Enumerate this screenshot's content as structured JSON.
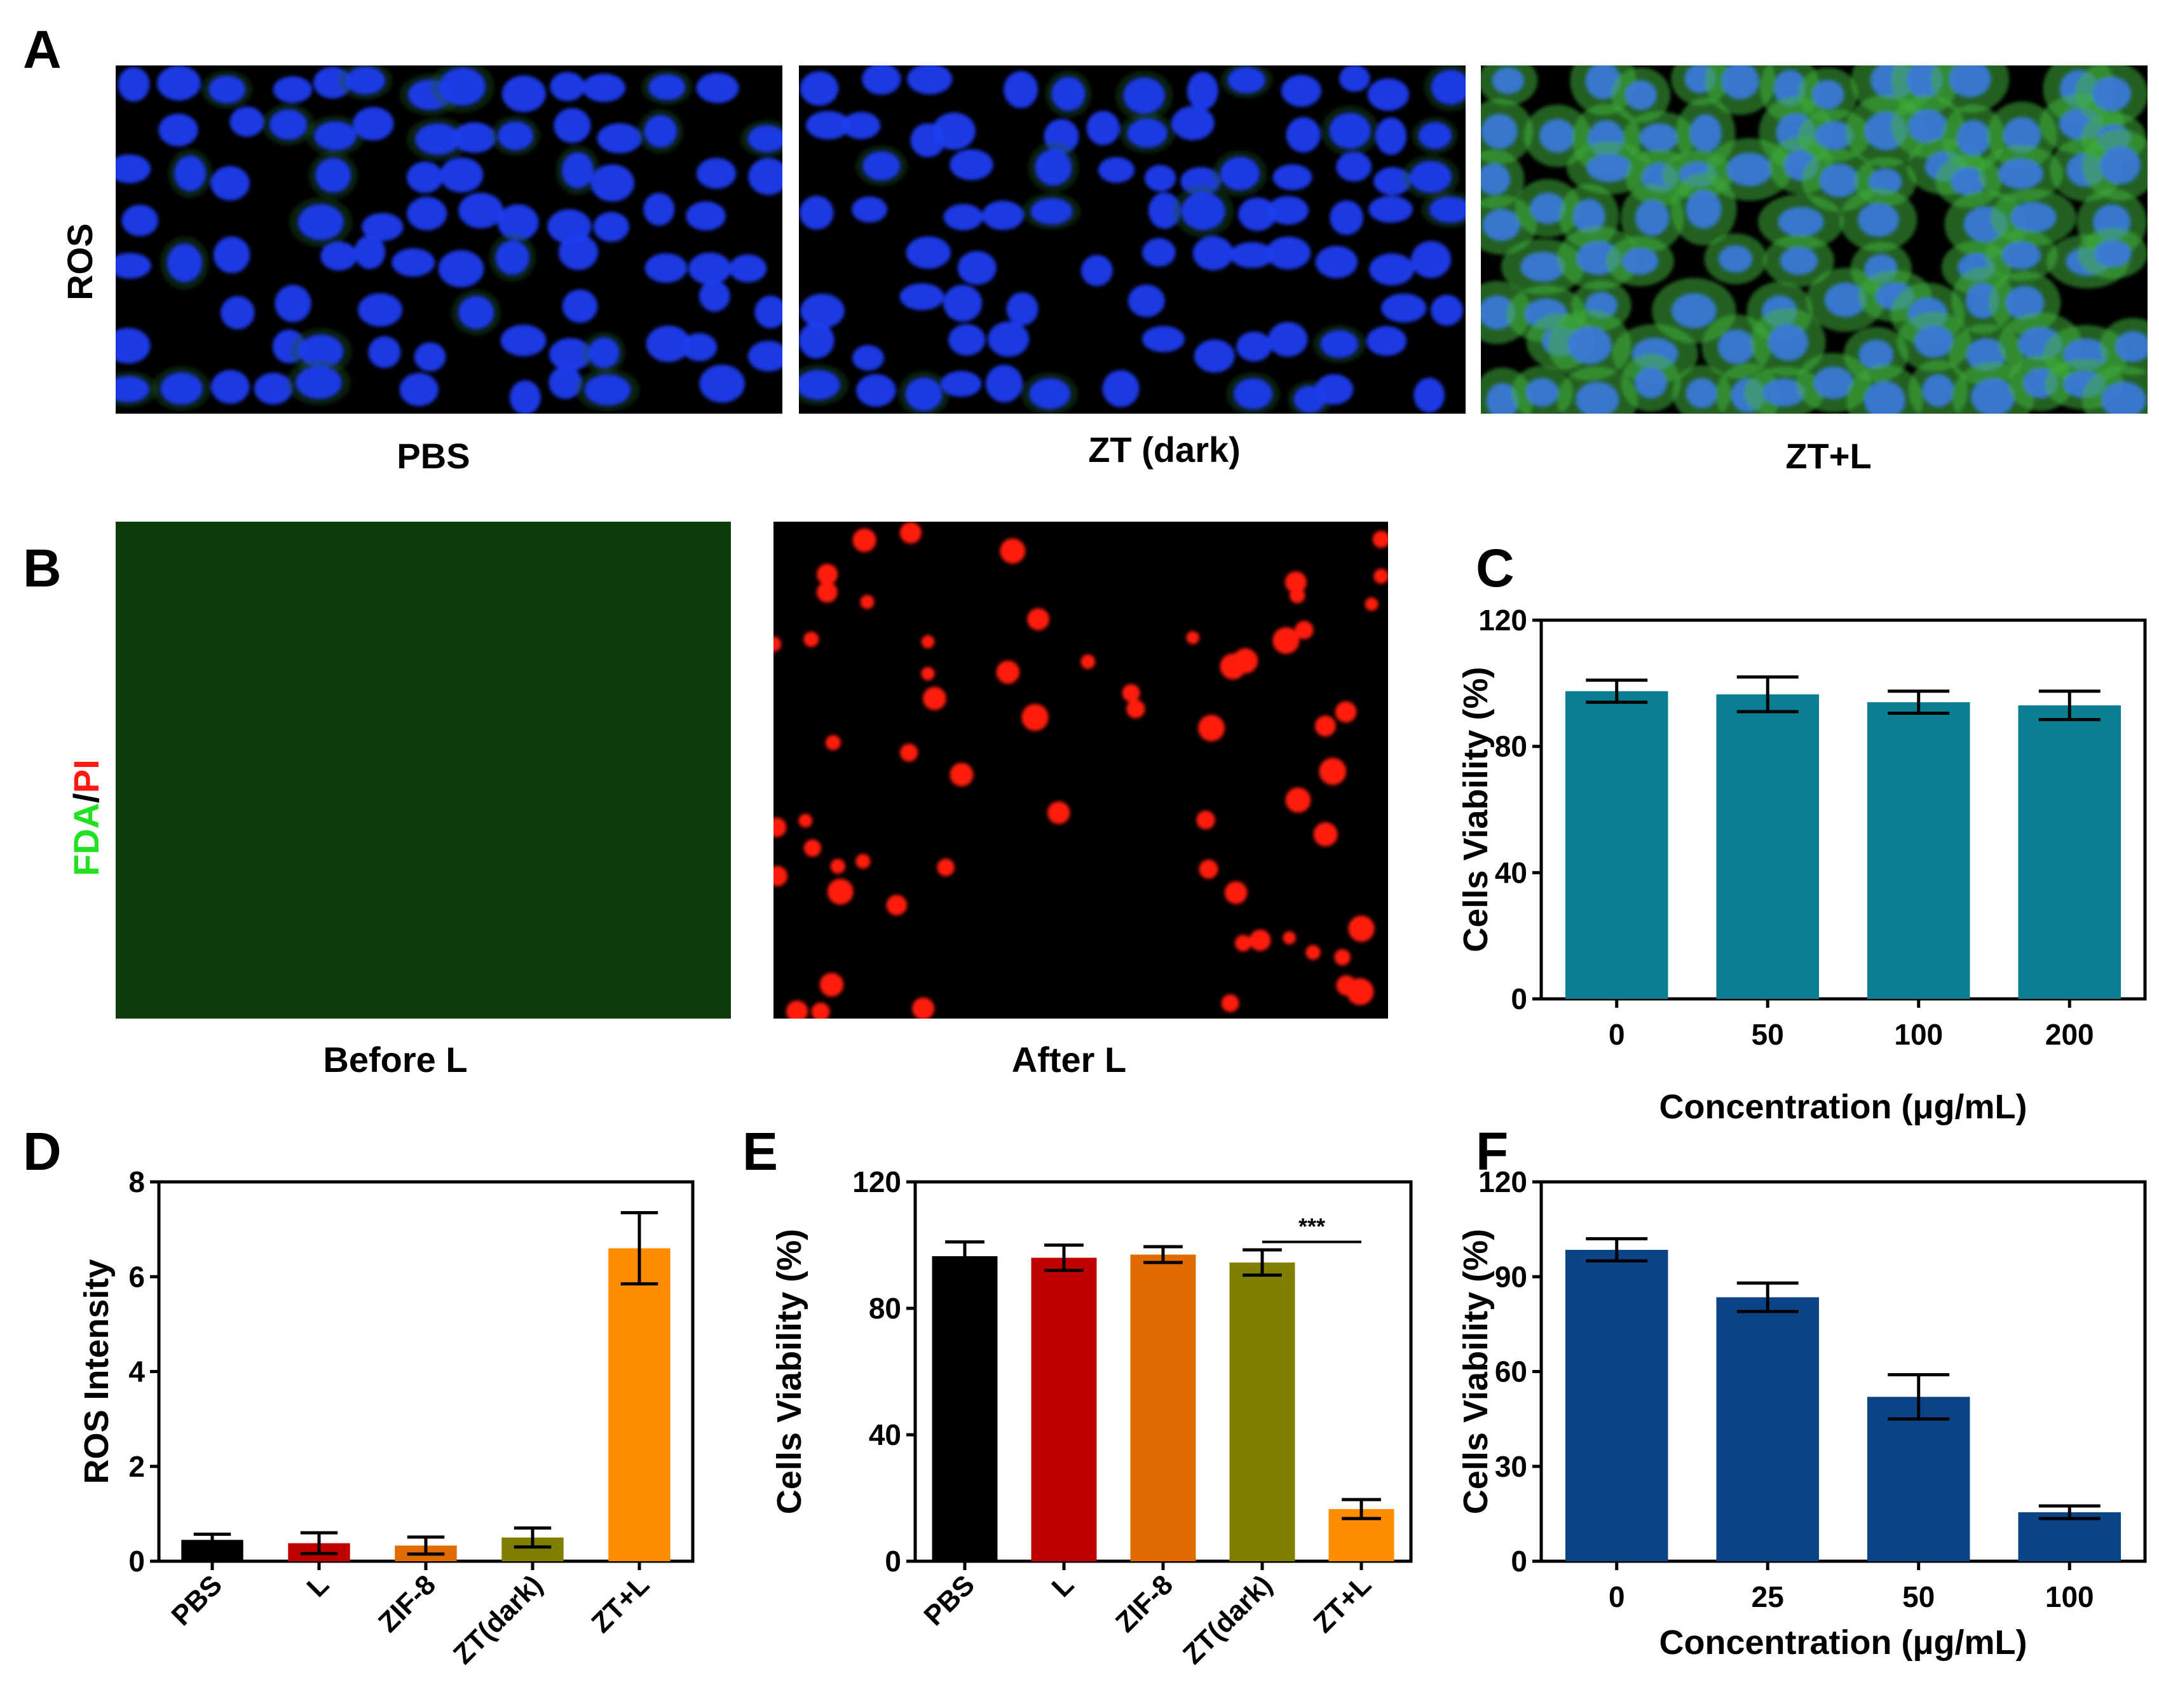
{
  "panels": {
    "A": {
      "label": "A",
      "row_label": "ROS",
      "captions": [
        "PBS",
        "ZT (dark)",
        "ZT+L"
      ]
    },
    "B": {
      "label": "B",
      "stain_fda": "FDA",
      "stain_sep": "/",
      "stain_pi": "PI",
      "captions": [
        "Before L",
        "After L"
      ]
    },
    "C": {
      "label": "C"
    },
    "D": {
      "label": "D"
    },
    "E": {
      "label": "E"
    },
    "F": {
      "label": "F"
    }
  },
  "colors": {
    "nuclei_blue": "#1f3cf0",
    "ros_green": "#3fae3a",
    "fda_green": "#3fd23a",
    "pi_red": "#ff1a10",
    "teal": "#0a7f93",
    "navy": "#0d4387",
    "black": "#000000",
    "red": "#c00000",
    "dark_orange": "#e06b00",
    "olive": "#7f7f00",
    "orange": "#ff8c00"
  },
  "chart_data": [
    {
      "id": "C",
      "type": "bar",
      "categories": [
        "0",
        "50",
        "100",
        "200"
      ],
      "values": [
        97.5,
        96.5,
        94,
        93
      ],
      "errors": [
        3.5,
        5.5,
        3.5,
        4.5
      ],
      "colors": [
        "#0a7f93",
        "#0a7f93",
        "#0a7f93",
        "#0a7f93"
      ],
      "xlabel": "Concentration (μg/mL)",
      "ylabel": "Cells Viability (%)",
      "ylim": [
        0,
        120
      ],
      "yticks": [
        0,
        40,
        80,
        120
      ],
      "rotate_x": false
    },
    {
      "id": "D",
      "type": "bar",
      "categories": [
        "PBS",
        "L",
        "ZIF-8",
        "ZT(dark)",
        "ZT+L"
      ],
      "values": [
        0.45,
        0.38,
        0.33,
        0.5,
        6.6
      ],
      "errors": [
        0.12,
        0.22,
        0.18,
        0.2,
        0.75
      ],
      "colors": [
        "#000000",
        "#c00000",
        "#e06b00",
        "#7f7f00",
        "#ff8c00"
      ],
      "xlabel": "",
      "ylabel": "ROS Intensity",
      "ylim": [
        0,
        8
      ],
      "yticks": [
        0,
        2,
        4,
        6,
        8
      ],
      "rotate_x": true
    },
    {
      "id": "E",
      "type": "bar",
      "categories": [
        "PBS",
        "L",
        "ZIF-8",
        "ZT(dark)",
        "ZT+L"
      ],
      "values": [
        96.5,
        96,
        97,
        94.5,
        16.5
      ],
      "errors": [
        4.5,
        4,
        2.5,
        4,
        3
      ],
      "colors": [
        "#000000",
        "#c00000",
        "#e06b00",
        "#7f7f00",
        "#ff8c00"
      ],
      "xlabel": "",
      "ylabel": "Cells Viability (%)",
      "ylim": [
        0,
        120
      ],
      "yticks": [
        0,
        40,
        80,
        120
      ],
      "rotate_x": true,
      "annotation": {
        "text": "***",
        "from": 3,
        "to": 4,
        "y": 101
      }
    },
    {
      "id": "F",
      "type": "bar",
      "categories": [
        "0",
        "25",
        "50",
        "100"
      ],
      "values": [
        98.5,
        83.5,
        52,
        15.5
      ],
      "errors": [
        3.5,
        4.5,
        7,
        2
      ],
      "colors": [
        "#0d4387",
        "#0d4387",
        "#0d4387",
        "#0d4387"
      ],
      "xlabel": "Concentration (μg/mL)",
      "ylabel": "Cells Viability (%)",
      "ylim": [
        0,
        120
      ],
      "yticks": [
        0,
        30,
        60,
        90,
        120
      ],
      "rotate_x": false
    }
  ]
}
